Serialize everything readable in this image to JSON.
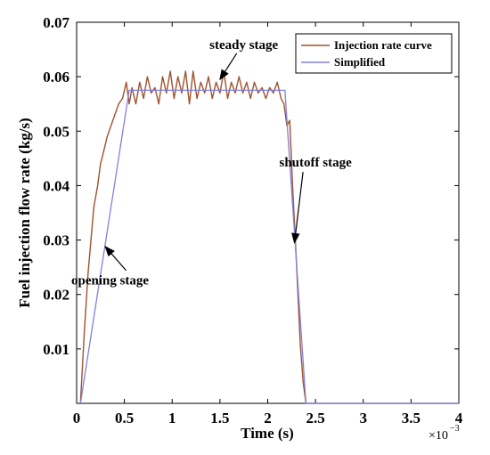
{
  "chart_data": {
    "type": "line",
    "xlabel": "Time (s)",
    "ylabel": "Fuel injection flow rate (kg/s)",
    "x_exponent_label": "×10",
    "x_exponent_power": "−3",
    "xlim": [
      0,
      4
    ],
    "ylim": [
      0,
      0.07
    ],
    "x_ticks": [
      "0",
      "0.5",
      "1",
      "1.5",
      "2",
      "2.5",
      "3",
      "3.5",
      "4"
    ],
    "y_ticks": [
      "0.01",
      "0.02",
      "0.03",
      "0.04",
      "0.05",
      "0.06",
      "0.07"
    ],
    "grid": false,
    "legend_position": "top-right",
    "series": [
      {
        "name": "Injection rate curve",
        "color": "#a0522d",
        "x": [
          0.04,
          0.08,
          0.12,
          0.15,
          0.18,
          0.22,
          0.25,
          0.28,
          0.32,
          0.36,
          0.4,
          0.44,
          0.48,
          0.52,
          0.55,
          0.58,
          0.62,
          0.66,
          0.7,
          0.74,
          0.78,
          0.82,
          0.86,
          0.9,
          0.94,
          0.98,
          1.02,
          1.06,
          1.1,
          1.14,
          1.18,
          1.22,
          1.26,
          1.3,
          1.34,
          1.38,
          1.42,
          1.46,
          1.5,
          1.54,
          1.58,
          1.62,
          1.66,
          1.7,
          1.74,
          1.78,
          1.82,
          1.86,
          1.9,
          1.94,
          1.98,
          2.02,
          2.06,
          2.1,
          2.14,
          2.17,
          2.2,
          2.23,
          2.26,
          2.3,
          2.34,
          2.37,
          2.4,
          3.0,
          4.0
        ],
        "y": [
          0.0,
          0.013,
          0.024,
          0.03,
          0.036,
          0.04,
          0.044,
          0.046,
          0.049,
          0.051,
          0.053,
          0.055,
          0.056,
          0.059,
          0.055,
          0.058,
          0.055,
          0.059,
          0.056,
          0.06,
          0.057,
          0.058,
          0.055,
          0.06,
          0.057,
          0.061,
          0.056,
          0.06,
          0.057,
          0.061,
          0.055,
          0.061,
          0.056,
          0.059,
          0.057,
          0.06,
          0.056,
          0.059,
          0.057,
          0.061,
          0.056,
          0.059,
          0.057,
          0.06,
          0.057,
          0.059,
          0.056,
          0.059,
          0.057,
          0.058,
          0.056,
          0.058,
          0.057,
          0.059,
          0.056,
          0.055,
          0.051,
          0.052,
          0.04,
          0.026,
          0.011,
          0.004,
          0.0,
          0.0,
          0.0
        ]
      },
      {
        "name": "Simplified",
        "color": "#8080e0",
        "x": [
          0.04,
          0.55,
          2.18,
          2.4,
          4.0
        ],
        "y": [
          0.0,
          0.0575,
          0.0575,
          0.0,
          0.0
        ]
      }
    ],
    "annotations": [
      {
        "text": "steady stage",
        "x": 1.75,
        "y": 0.0651,
        "arrow_to": [
          1.5,
          0.0595
        ]
      },
      {
        "text": "opening stage",
        "x": 0.35,
        "y": 0.0218,
        "arrow_to": [
          0.3,
          0.0288
        ]
      },
      {
        "text": "shutoff stage",
        "x": 2.5,
        "y": 0.0435,
        "arrow_to": [
          2.28,
          0.0295
        ]
      }
    ]
  }
}
